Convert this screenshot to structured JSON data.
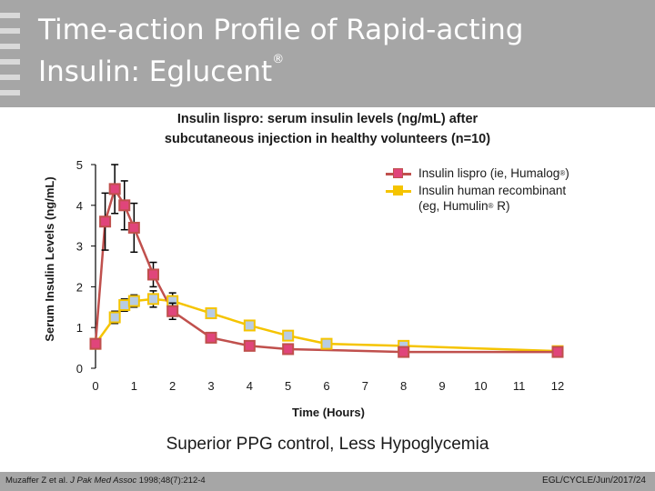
{
  "slide": {
    "title_line1": "Time-action Profile of Rapid-acting",
    "title_line2": "Insulin: Eglucent",
    "title_mark": "®",
    "chart_title_line1": "Insulin lispro: serum insulin levels (ng/mL) after",
    "chart_title_line2": "subcutaneous injection in healthy volunteers (n=10)",
    "headline": "Superior PPG control, Less Hypoglycemia",
    "citation_authors": "Muzaffer Z et al. ",
    "citation_journal": "J Pak Med Assoc",
    "citation_rest": " 1998;48(7):212-4",
    "code": "EGL/CYCLE/Jun/2017/24"
  },
  "legend": {
    "lispro_a": "Insulin lispro (ie, Humalog",
    "lispro_mark": "®",
    "lispro_b": ")",
    "human_line1": "Insulin human recombinant",
    "human_line2a": "(eg, Humulin",
    "human_mark": "®",
    "human_line2b": " R)"
  },
  "chart_data": {
    "type": "line",
    "xlabel": "Time (Hours)",
    "ylabel": "Serum Insulin Levels (ng/mL)",
    "xlim": [
      0,
      12
    ],
    "ylim": [
      0,
      5
    ],
    "xticks": [
      0,
      1,
      2,
      3,
      4,
      5,
      6,
      7,
      8,
      9,
      10,
      11,
      12
    ],
    "yticks": [
      0,
      1,
      2,
      3,
      4,
      5
    ],
    "series": [
      {
        "name": "Insulin lispro (ie, Humalog®)",
        "color": "#c0504d",
        "marker_color": "#e0457b",
        "x": [
          0,
          0.25,
          0.5,
          0.75,
          1,
          1.5,
          2,
          3,
          4,
          5,
          8,
          12
        ],
        "y": [
          0.6,
          3.6,
          4.4,
          4.0,
          3.45,
          2.3,
          1.4,
          0.75,
          0.55,
          0.47,
          0.4,
          0.4
        ],
        "error": [
          0,
          0.7,
          0.6,
          0.6,
          0.6,
          0.3,
          0.2,
          0.1,
          0.05,
          0.05,
          0.05,
          0.05
        ]
      },
      {
        "name": "Insulin human recombinant (eg, Humulin® R)",
        "color": "#f5c400",
        "marker_color": "#b8cce4",
        "x": [
          0,
          0.5,
          0.75,
          1,
          1.5,
          2,
          3,
          4,
          5,
          6,
          8,
          12
        ],
        "y": [
          0.6,
          1.25,
          1.55,
          1.65,
          1.7,
          1.65,
          1.35,
          1.05,
          0.8,
          0.6,
          0.55,
          0.42
        ],
        "error": [
          0,
          0.15,
          0.15,
          0.15,
          0.2,
          0.2,
          0.05,
          0.05,
          0.05,
          0.05,
          0.05,
          0.05
        ]
      }
    ],
    "grid": false,
    "legend_position": "top-right"
  }
}
